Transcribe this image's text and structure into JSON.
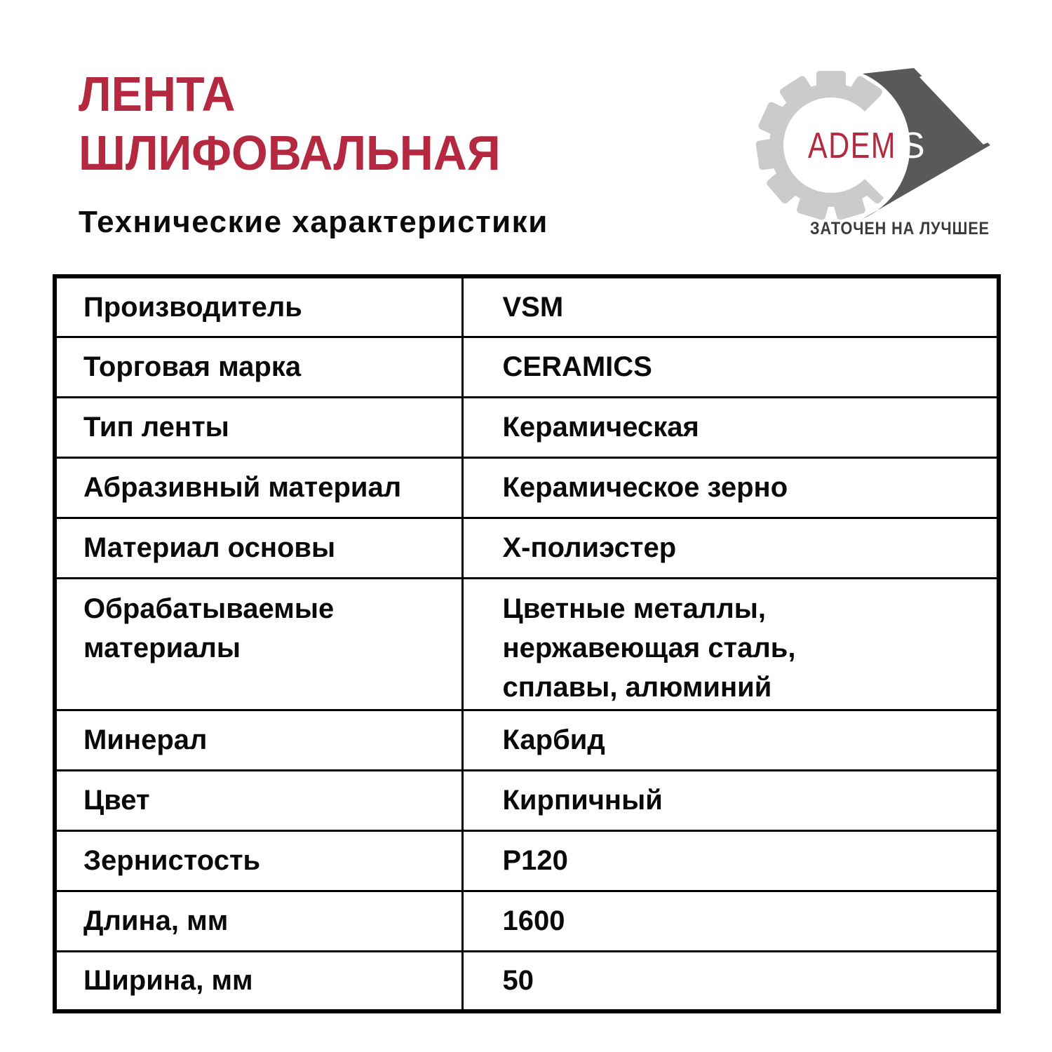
{
  "header": {
    "title": "ЛЕНТА\nШЛИФОВАЛЬНАЯ",
    "subtitle": "Технические характеристики"
  },
  "logo": {
    "brand_adem": "ADEM",
    "brand_s": "S",
    "tagline": "ЗАТОЧЕН НА ЛУЧШЕЕ",
    "icons": [
      "gear-icon",
      "arrow-icon"
    ],
    "colors": {
      "gear": "#cbcbcb",
      "arrow": "#59585a",
      "brand_red": "#b5293f",
      "brand_s": "#ffffff",
      "tagline": "#3c3c3c"
    }
  },
  "colors": {
    "accent_red": "#b42940",
    "text": "#0a0a0a",
    "border": "#000000",
    "background": "#ffffff"
  },
  "table": {
    "rows": [
      {
        "label": "Производитель",
        "value": "VSM"
      },
      {
        "label": "Торговая марка",
        "value": "CERAMICS"
      },
      {
        "label": "Тип ленты",
        "value": "Керамическая"
      },
      {
        "label": "Абразивный материал",
        "value": "Керамическое зерно"
      },
      {
        "label": "Материал основы",
        "value": "Х-полиэстер"
      },
      {
        "label": "Обрабатываемые\nматериалы",
        "value": "Цветные металлы,\nнержавеющая сталь,\nсплавы, алюминий"
      },
      {
        "label": "Минерал",
        "value": "Карбид"
      },
      {
        "label": "Цвет",
        "value": "Кирпичный"
      },
      {
        "label": "Зернистость",
        "value": "P120"
      },
      {
        "label": "Длина, мм",
        "value": "1600"
      },
      {
        "label": "Ширина, мм",
        "value": "50"
      }
    ]
  }
}
